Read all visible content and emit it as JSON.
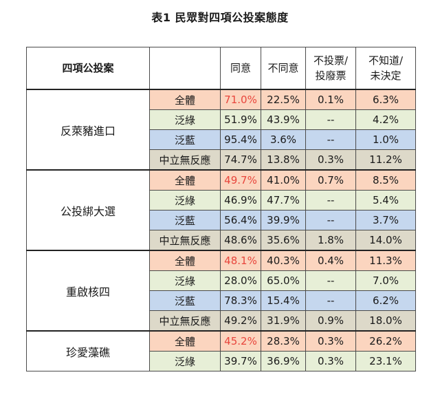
{
  "title": "表1  民眾對四項公投案態度",
  "header": {
    "topic": "四項公投案",
    "agree": "同意",
    "disagree": "不同意",
    "novote_1": "不投票/",
    "novote_2": "投廢票",
    "unknown_1": "不知道/",
    "unknown_2": "未決定"
  },
  "colors": {
    "全體": "#fbd5bf",
    "泛綠": "#e7efd7",
    "泛藍": "#c5d7ee",
    "中立無反應": "#ddd9c9",
    "highlight_text": "#e8453c"
  },
  "groups": [
    {
      "topic": "反萊豬進口",
      "rows": [
        {
          "group": "全體",
          "agree": "71.0%",
          "disagree": "22.5%",
          "novote": "0.1%",
          "unknown": "6.3%",
          "highlight": true
        },
        {
          "group": "泛綠",
          "agree": "51.9%",
          "disagree": "43.9%",
          "novote": "--",
          "unknown": "4.2%"
        },
        {
          "group": "泛藍",
          "agree": "95.4%",
          "disagree": "3.6%",
          "novote": "--",
          "unknown": "1.0%"
        },
        {
          "group": "中立無反應",
          "agree": "74.7%",
          "disagree": "13.8%",
          "novote": "0.3%",
          "unknown": "11.2%"
        }
      ]
    },
    {
      "topic": "公投綁大選",
      "rows": [
        {
          "group": "全體",
          "agree": "49.7%",
          "disagree": "41.0%",
          "novote": "0.7%",
          "unknown": "8.5%",
          "highlight": true
        },
        {
          "group": "泛綠",
          "agree": "46.9%",
          "disagree": "47.7%",
          "novote": "--",
          "unknown": "5.4%"
        },
        {
          "group": "泛藍",
          "agree": "56.4%",
          "disagree": "39.9%",
          "novote": "--",
          "unknown": "3.7%"
        },
        {
          "group": "中立無反應",
          "agree": "48.6%",
          "disagree": "35.6%",
          "novote": "1.8%",
          "unknown": "14.0%"
        }
      ]
    },
    {
      "topic": "重啟核四",
      "rows": [
        {
          "group": "全體",
          "agree": "48.1%",
          "disagree": "40.3%",
          "novote": "0.4%",
          "unknown": "11.3%",
          "highlight": true
        },
        {
          "group": "泛綠",
          "agree": "28.0%",
          "disagree": "65.0%",
          "novote": "--",
          "unknown": "7.0%"
        },
        {
          "group": "泛藍",
          "agree": "78.3%",
          "disagree": "15.4%",
          "novote": "--",
          "unknown": "6.2%"
        },
        {
          "group": "中立無反應",
          "agree": "49.2%",
          "disagree": "31.9%",
          "novote": "0.9%",
          "unknown": "18.0%"
        }
      ]
    },
    {
      "topic": "珍愛藻礁",
      "rows": [
        {
          "group": "全體",
          "agree": "45.2%",
          "disagree": "28.3%",
          "novote": "0.3%",
          "unknown": "26.2%",
          "highlight": true
        },
        {
          "group": "泛綠",
          "agree": "39.7%",
          "disagree": "36.9%",
          "novote": "0.3%",
          "unknown": "23.1%"
        }
      ]
    }
  ]
}
